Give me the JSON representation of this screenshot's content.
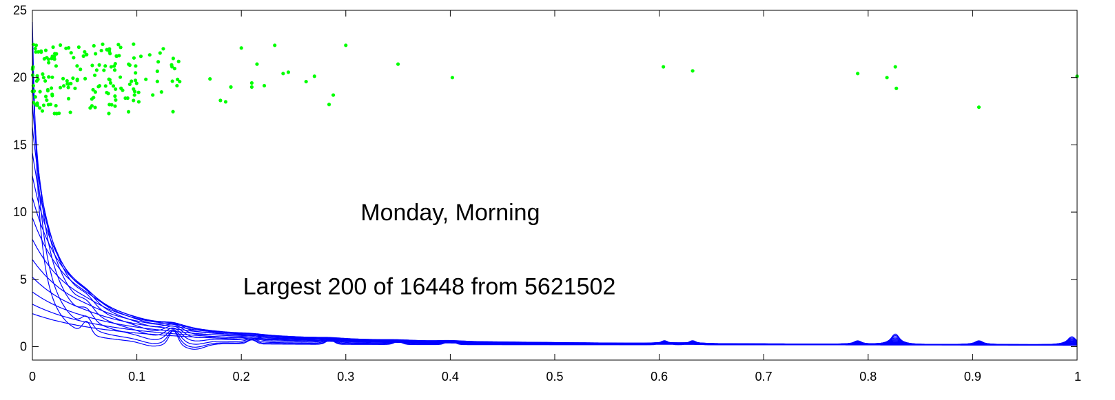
{
  "chart_data": {
    "type": "line",
    "title": "",
    "xlabel": "",
    "ylabel": "",
    "xlim": [
      0,
      1
    ],
    "ylim": [
      -1,
      25
    ],
    "x_ticks": [
      0,
      0.1,
      0.2,
      0.3,
      0.4,
      0.5,
      0.6,
      0.7,
      0.8,
      0.9,
      1
    ],
    "x_tick_labels": [
      "0",
      "0.1",
      "0.2",
      "0.3",
      "0.4",
      "0.5",
      "0.6",
      "0.7",
      "0.8",
      "0.9",
      "1"
    ],
    "y_ticks": [
      0,
      5,
      10,
      15,
      20,
      25
    ],
    "y_tick_labels": [
      "0",
      "5",
      "10",
      "15",
      "20",
      "25"
    ],
    "grid": false,
    "annotations": [
      {
        "text": "Monday, Morning",
        "x": 0.4,
        "y": 9.4
      },
      {
        "text": "Largest 200 of 16448  from 5621502",
        "x": 0.38,
        "y": 3.9
      }
    ],
    "curve_color": "#0000ff",
    "point_color": "#00ff00",
    "curve_peaks": [
      24.0,
      22.0,
      20.0,
      18.0,
      16.2,
      14.3,
      12.6,
      11.0,
      9.5,
      7.9,
      6.4,
      5.1,
      4.0,
      3.1,
      2.4
    ],
    "bumps": [
      {
        "x": 0.052,
        "y": 0.9
      },
      {
        "x": 0.135,
        "y": 1.0
      },
      {
        "x": 0.21,
        "y": 0.3
      },
      {
        "x": 0.285,
        "y": 0.3
      },
      {
        "x": 0.35,
        "y": 0.2
      },
      {
        "x": 0.4,
        "y": 0.3
      },
      {
        "x": 0.605,
        "y": 0.3
      },
      {
        "x": 0.632,
        "y": 0.3
      },
      {
        "x": 0.79,
        "y": 0.3
      },
      {
        "x": 0.826,
        "y": 0.8
      },
      {
        "x": 0.906,
        "y": 0.3
      },
      {
        "x": 0.995,
        "y": 0.6
      }
    ],
    "points_cluster": {
      "x_range": [
        0,
        0.14
      ],
      "y_range": [
        17.3,
        22.5
      ],
      "count": 170
    },
    "points": [
      [
        0.14,
        21.2
      ],
      [
        0.141,
        19.7
      ],
      [
        0.17,
        19.9
      ],
      [
        0.18,
        18.3
      ],
      [
        0.185,
        18.2
      ],
      [
        0.19,
        19.3
      ],
      [
        0.2,
        22.2
      ],
      [
        0.21,
        19.3
      ],
      [
        0.21,
        19.6
      ],
      [
        0.215,
        21.0
      ],
      [
        0.222,
        19.4
      ],
      [
        0.232,
        22.4
      ],
      [
        0.24,
        20.3
      ],
      [
        0.245,
        20.4
      ],
      [
        0.262,
        19.7
      ],
      [
        0.27,
        20.1
      ],
      [
        0.284,
        18.0
      ],
      [
        0.288,
        18.7
      ],
      [
        0.3,
        22.4
      ],
      [
        0.35,
        21.0
      ],
      [
        0.402,
        20.0
      ],
      [
        0.604,
        20.8
      ],
      [
        0.632,
        20.5
      ],
      [
        0.79,
        20.3
      ],
      [
        0.818,
        20.0
      ],
      [
        0.826,
        20.8
      ],
      [
        0.827,
        19.2
      ],
      [
        0.906,
        17.8
      ],
      [
        1.0,
        20.1
      ]
    ]
  }
}
